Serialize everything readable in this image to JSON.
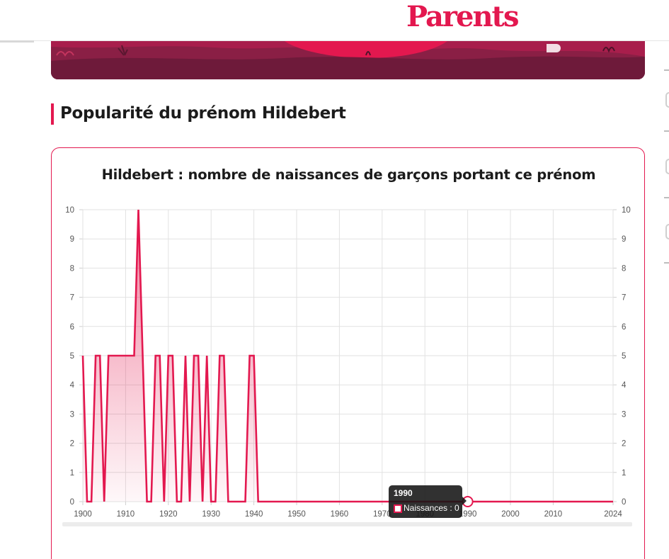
{
  "header": {
    "logo": "Parents"
  },
  "section": {
    "title": "Popularité du prénom Hildebert"
  },
  "colors": {
    "accent": "#e3184f",
    "grid": "#e0e0e0",
    "tooltip_bg": "#1e1e1e"
  },
  "chart_data": {
    "type": "area",
    "title": "Hildebert : nombre de naissances de garçons portant ce prénom",
    "xlabel": "",
    "ylabel": "",
    "xlim": [
      1900,
      2024
    ],
    "ylim": [
      0,
      10
    ],
    "x_ticks": [
      "1900",
      "1910",
      "1920",
      "1930",
      "1940",
      "1950",
      "1960",
      "1970",
      "1980",
      "1990",
      "2000",
      "2010",
      "2024"
    ],
    "y_ticks": [
      "0",
      "1",
      "2",
      "3",
      "4",
      "5",
      "6",
      "7",
      "8",
      "9",
      "10"
    ],
    "grid": true,
    "series": [
      {
        "name": "Naissances",
        "x": [
          1900,
          1901,
          1902,
          1903,
          1904,
          1905,
          1906,
          1912,
          1913,
          1915,
          1916,
          1917,
          1918,
          1919,
          1920,
          1921,
          1922,
          1923,
          1924,
          1925,
          1926,
          1927,
          1928,
          1929,
          1930,
          1931,
          1932,
          1933,
          1934,
          1938,
          1939,
          1940,
          1941,
          2024
        ],
        "y": [
          5,
          0,
          0,
          5,
          5,
          0,
          5,
          5,
          10,
          0,
          0,
          5,
          5,
          0,
          5,
          5,
          0,
          0,
          5,
          0,
          5,
          5,
          0,
          5,
          0,
          0,
          5,
          5,
          0,
          0,
          5,
          5,
          0,
          0
        ]
      }
    ],
    "tooltip": {
      "title": "1990",
      "body": "Naissances : 0"
    }
  }
}
